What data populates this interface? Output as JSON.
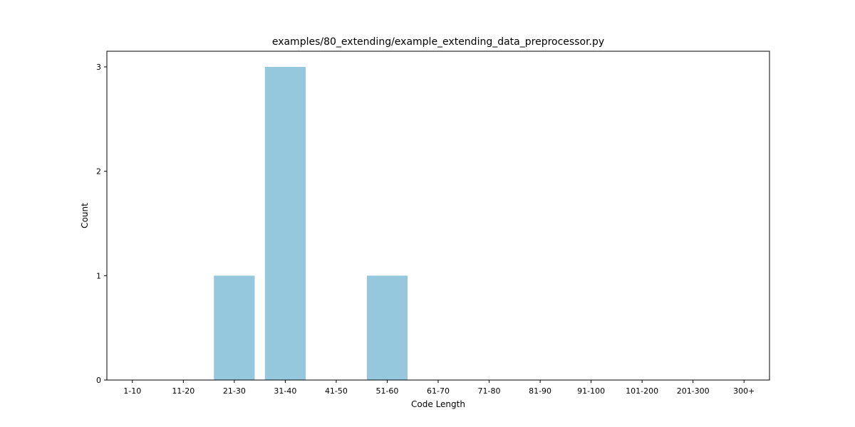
{
  "chart_data": {
    "type": "bar",
    "title": "examples/80_extending/example_extending_data_preprocessor.py",
    "xlabel": "Code Length",
    "ylabel": "Count",
    "categories": [
      "1-10",
      "11-20",
      "21-30",
      "31-40",
      "41-50",
      "51-60",
      "61-70",
      "71-80",
      "81-90",
      "91-100",
      "101-200",
      "201-300",
      "300+"
    ],
    "values": [
      0,
      0,
      1,
      3,
      0,
      1,
      0,
      0,
      0,
      0,
      0,
      0,
      0
    ],
    "ylim": [
      0,
      3.15
    ],
    "yticks": [
      0,
      1,
      2,
      3
    ],
    "bar_color": "#96c8dd",
    "grid": false,
    "legend": "none"
  }
}
